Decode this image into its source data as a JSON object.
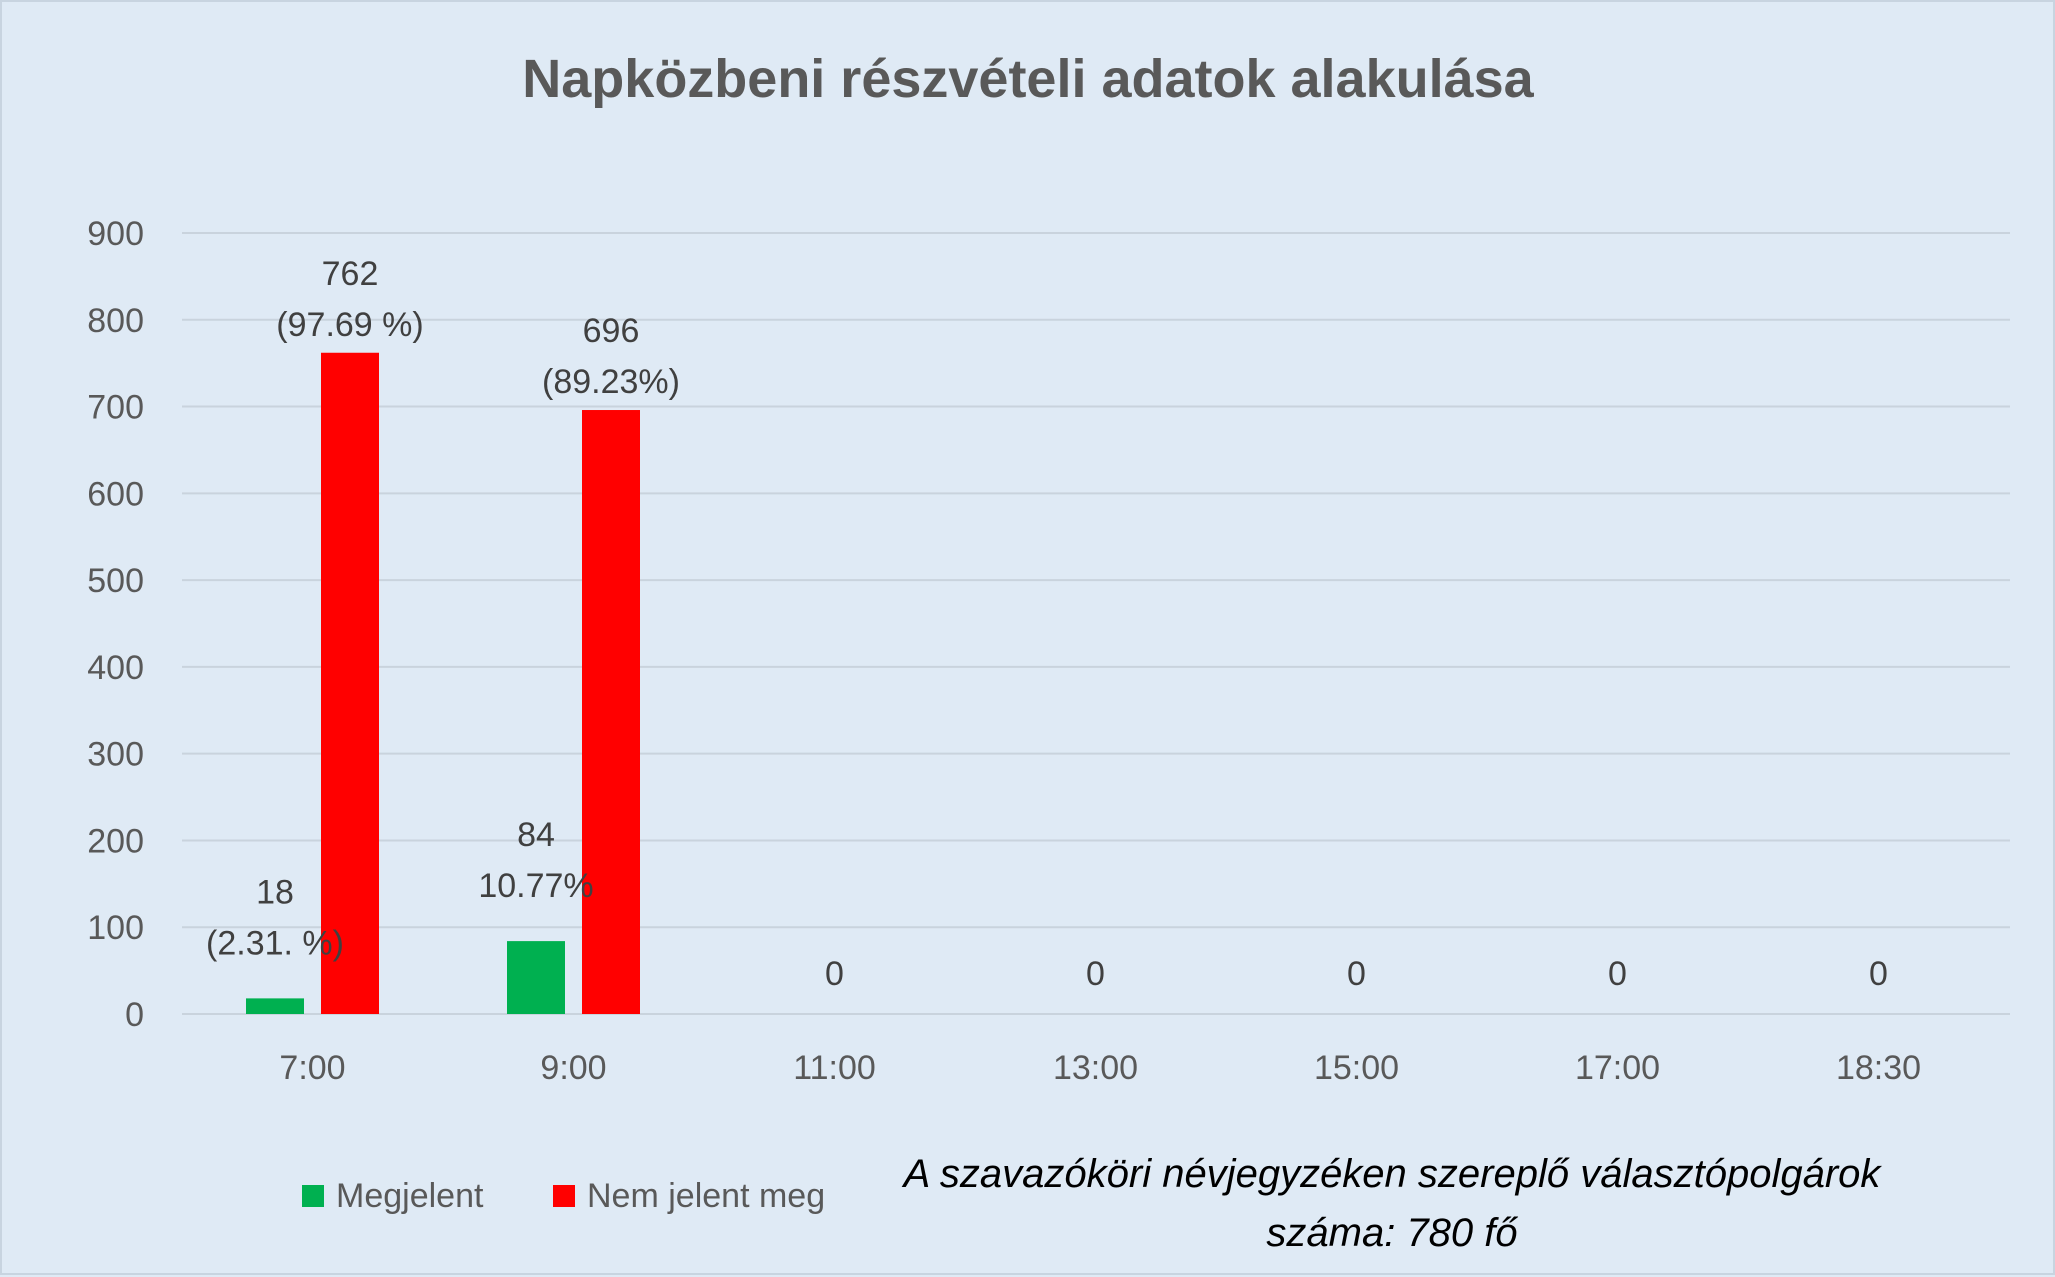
{
  "colors": {
    "background": "#dfeaf5",
    "gridline": "#c9d3dd",
    "megjelent": "#00b050",
    "nem_jelent_meg": "#ff0000",
    "text": "#595959"
  },
  "chart_data": {
    "type": "bar",
    "title": "Napközbeni részvételi adatok alakulása",
    "xlabel": "",
    "ylabel": "",
    "ylim": [
      0,
      900
    ],
    "yticks": [
      "0",
      "100",
      "200",
      "300",
      "400",
      "500",
      "600",
      "700",
      "800",
      "900"
    ],
    "grid": true,
    "legend_position": "bottom-left",
    "categories": [
      "7:00",
      "9:00",
      "11:00",
      "13:00",
      "15:00",
      "17:00",
      "18:30"
    ],
    "series": [
      {
        "name": "Megjelent",
        "color": "#00b050",
        "values": [
          18,
          84,
          0,
          0,
          0,
          0,
          0
        ],
        "labels": [
          [
            "18",
            "(2.31. %)"
          ],
          [
            "84",
            "10.77%"
          ],
          [
            "0"
          ],
          [
            "0"
          ],
          [
            "0"
          ],
          [
            "0"
          ],
          [
            "0"
          ]
        ]
      },
      {
        "name": "Nem jelent meg",
        "color": "#ff0000",
        "values": [
          762,
          696,
          null,
          null,
          null,
          null,
          null
        ],
        "labels": [
          [
            "762",
            "(97.69 %)"
          ],
          [
            "696",
            "(89.23%)"
          ],
          [],
          [],
          [],
          [],
          []
        ]
      }
    ]
  },
  "note": {
    "line1": "A szavazóköri névjegyzéken szereplő választópolgárok",
    "line2": "száma: 780 fő"
  }
}
